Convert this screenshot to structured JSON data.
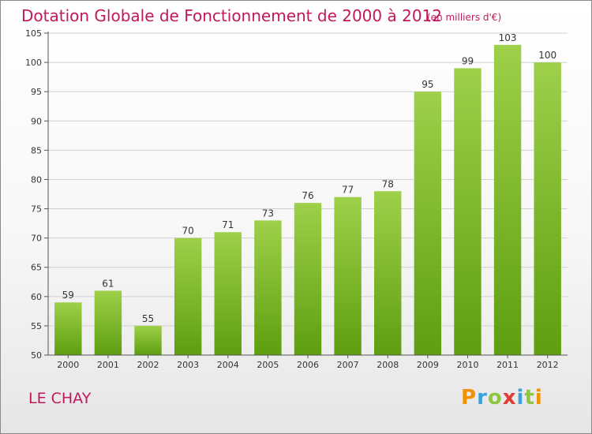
{
  "title": "Dotation Globale de Fonctionnement de 2000 à 2012",
  "subtitle": "(en milliers d'€)",
  "commune": "LE CHAY",
  "logo": {
    "letters": [
      "P",
      "r",
      "o",
      "x",
      "i",
      "t",
      "i"
    ],
    "colors": [
      "#f39200",
      "#3aa1d9",
      "#8dc63f",
      "#e53935",
      "#3aa1d9",
      "#8dc63f",
      "#f39200"
    ]
  },
  "colors": {
    "title": "#c2185b",
    "bar_top": "#9ed04a",
    "bar_bottom": "#5e9e10",
    "axis": "#555555",
    "grid": "#d0d0d0"
  },
  "chart_data": {
    "type": "bar",
    "categories": [
      "2000",
      "2001",
      "2002",
      "2003",
      "2004",
      "2005",
      "2006",
      "2007",
      "2008",
      "2009",
      "2010",
      "2011",
      "2012"
    ],
    "values": [
      59,
      61,
      55,
      70,
      71,
      73,
      76,
      77,
      78,
      95,
      99,
      103,
      100
    ],
    "ylim": [
      50,
      105
    ],
    "yticks": [
      50,
      55,
      60,
      65,
      70,
      75,
      80,
      85,
      90,
      95,
      100,
      105
    ],
    "grid": true
  }
}
